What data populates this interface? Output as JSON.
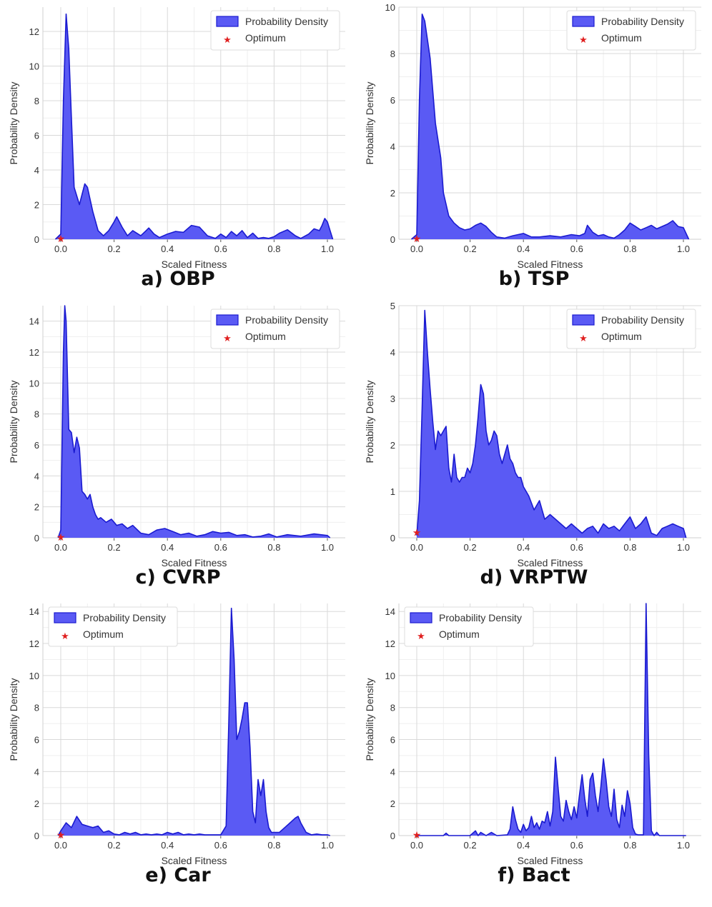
{
  "legend": {
    "density_label": "Probability Density",
    "optimum_label": "Optimum"
  },
  "colors": {
    "fill": "#5a5af4",
    "stroke": "#1a1ad0",
    "grid": "#d9d9d9",
    "star": "#e02020"
  },
  "chart_data": [
    {
      "id": "a",
      "caption": "a) OBP",
      "type": "area",
      "xlabel": "Scaled Fitness",
      "ylabel": "Probability Density",
      "xlim": [
        0,
        1
      ],
      "ylim": [
        0,
        13.4
      ],
      "xticks": [
        "0.0",
        "0.2",
        "0.4",
        "0.6",
        "0.8",
        "1.0"
      ],
      "yticks": [
        "0",
        "2",
        "4",
        "6",
        "8",
        "10",
        "12"
      ],
      "legend_position": "top-right",
      "grid": true,
      "optimum": [
        0,
        0
      ],
      "x": [
        -0.02,
        0,
        0.01,
        0.02,
        0.03,
        0.04,
        0.05,
        0.07,
        0.09,
        0.1,
        0.12,
        0.14,
        0.16,
        0.18,
        0.2,
        0.21,
        0.23,
        0.25,
        0.27,
        0.3,
        0.32,
        0.33,
        0.35,
        0.37,
        0.4,
        0.43,
        0.46,
        0.49,
        0.52,
        0.55,
        0.58,
        0.6,
        0.62,
        0.64,
        0.66,
        0.68,
        0.7,
        0.72,
        0.74,
        0.76,
        0.78,
        0.8,
        0.82,
        0.85,
        0.88,
        0.9,
        0.93,
        0.95,
        0.97,
        0.98,
        0.99,
        1.0,
        1.02
      ],
      "y": [
        0,
        0.3,
        8,
        13,
        11,
        7,
        3,
        2,
        3.2,
        3,
        1.6,
        0.5,
        0.2,
        0.5,
        1,
        1.3,
        0.7,
        0.2,
        0.5,
        0.2,
        0.5,
        0.65,
        0.3,
        0.1,
        0.3,
        0.45,
        0.4,
        0.8,
        0.7,
        0.2,
        0.05,
        0.3,
        0.1,
        0.45,
        0.2,
        0.5,
        0.1,
        0.35,
        0.05,
        0.1,
        0.05,
        0.15,
        0.35,
        0.55,
        0.2,
        0.05,
        0.3,
        0.6,
        0.5,
        0.8,
        1.2,
        1.0,
        0
      ]
    },
    {
      "id": "b",
      "caption": "b) TSP",
      "type": "area",
      "xlabel": "Scaled Fitness",
      "ylabel": "Probability Density",
      "xlim": [
        0,
        1
      ],
      "ylim": [
        0,
        10
      ],
      "xticks": [
        "0.0",
        "0.2",
        "0.4",
        "0.6",
        "0.8",
        "1.0"
      ],
      "yticks": [
        "0",
        "2",
        "4",
        "6",
        "8",
        "10"
      ],
      "legend_position": "top-right",
      "grid": true,
      "optimum": [
        0,
        0
      ],
      "x": [
        -0.02,
        0,
        0.01,
        0.02,
        0.03,
        0.05,
        0.07,
        0.09,
        0.1,
        0.12,
        0.14,
        0.16,
        0.18,
        0.2,
        0.22,
        0.24,
        0.26,
        0.28,
        0.3,
        0.33,
        0.36,
        0.4,
        0.43,
        0.46,
        0.5,
        0.54,
        0.58,
        0.61,
        0.63,
        0.64,
        0.66,
        0.68,
        0.7,
        0.72,
        0.74,
        0.76,
        0.78,
        0.8,
        0.82,
        0.84,
        0.86,
        0.88,
        0.9,
        0.92,
        0.94,
        0.96,
        0.98,
        1.0,
        1.02
      ],
      "y": [
        0,
        0.2,
        6,
        9.7,
        9.4,
        7.8,
        5,
        3.5,
        2,
        1,
        0.7,
        0.5,
        0.4,
        0.45,
        0.6,
        0.7,
        0.55,
        0.3,
        0.1,
        0.05,
        0.15,
        0.25,
        0.1,
        0.1,
        0.15,
        0.1,
        0.2,
        0.15,
        0.25,
        0.6,
        0.3,
        0.15,
        0.2,
        0.1,
        0.05,
        0.2,
        0.4,
        0.7,
        0.55,
        0.4,
        0.5,
        0.6,
        0.45,
        0.55,
        0.65,
        0.8,
        0.55,
        0.5,
        0
      ]
    },
    {
      "id": "c",
      "caption": "c) CVRP",
      "type": "area",
      "xlabel": "Scaled Fitness",
      "ylabel": "Probability Density",
      "xlim": [
        0,
        1
      ],
      "ylim": [
        0,
        15
      ],
      "xticks": [
        "0.0",
        "0.2",
        "0.4",
        "0.6",
        "0.8",
        "1.0"
      ],
      "yticks": [
        "0",
        "2",
        "4",
        "6",
        "8",
        "10",
        "12",
        "14"
      ],
      "legend_position": "top-right",
      "grid": true,
      "optimum": [
        0,
        0
      ],
      "x": [
        -0.01,
        0,
        0.01,
        0.015,
        0.02,
        0.03,
        0.04,
        0.05,
        0.06,
        0.07,
        0.08,
        0.09,
        0.1,
        0.11,
        0.12,
        0.13,
        0.14,
        0.15,
        0.17,
        0.19,
        0.21,
        0.23,
        0.25,
        0.27,
        0.3,
        0.33,
        0.36,
        0.39,
        0.42,
        0.45,
        0.48,
        0.51,
        0.54,
        0.57,
        0.6,
        0.63,
        0.66,
        0.69,
        0.72,
        0.75,
        0.78,
        0.81,
        0.85,
        0.9,
        0.95,
        1.0,
        1.01
      ],
      "y": [
        0,
        0.5,
        12,
        15.2,
        14,
        7,
        6.8,
        5.5,
        6.5,
        5.8,
        3,
        2.8,
        2.5,
        2.8,
        2,
        1.5,
        1.2,
        1.3,
        1,
        1.2,
        0.8,
        0.9,
        0.6,
        0.8,
        0.3,
        0.2,
        0.5,
        0.6,
        0.4,
        0.2,
        0.3,
        0.1,
        0.2,
        0.4,
        0.3,
        0.35,
        0.15,
        0.2,
        0.05,
        0.1,
        0.25,
        0.05,
        0.2,
        0.1,
        0.25,
        0.15,
        0
      ]
    },
    {
      "id": "d",
      "caption": "d) VRPTW",
      "type": "area",
      "xlabel": "Scaled Fitness",
      "ylabel": "Probability Density",
      "xlim": [
        0,
        1
      ],
      "ylim": [
        0,
        5
      ],
      "xticks": [
        "0.0",
        "0.2",
        "0.4",
        "0.6",
        "0.8",
        "1.0"
      ],
      "yticks": [
        "0",
        "1",
        "2",
        "3",
        "4",
        "5"
      ],
      "legend_position": "top-right",
      "grid": true,
      "optimum": [
        0,
        0.1
      ],
      "x": [
        0.0,
        0.01,
        0.02,
        0.03,
        0.04,
        0.05,
        0.06,
        0.07,
        0.08,
        0.09,
        0.1,
        0.11,
        0.12,
        0.13,
        0.14,
        0.15,
        0.16,
        0.17,
        0.18,
        0.19,
        0.2,
        0.21,
        0.22,
        0.23,
        0.24,
        0.25,
        0.26,
        0.27,
        0.28,
        0.29,
        0.3,
        0.31,
        0.32,
        0.33,
        0.34,
        0.35,
        0.36,
        0.37,
        0.38,
        0.39,
        0.4,
        0.42,
        0.44,
        0.46,
        0.48,
        0.5,
        0.52,
        0.54,
        0.56,
        0.58,
        0.6,
        0.62,
        0.64,
        0.66,
        0.68,
        0.7,
        0.72,
        0.74,
        0.76,
        0.78,
        0.8,
        0.82,
        0.84,
        0.86,
        0.88,
        0.9,
        0.92,
        0.94,
        0.96,
        0.98,
        1.0,
        1.01
      ],
      "y": [
        0.05,
        0.8,
        2.8,
        4.9,
        4.0,
        3.2,
        2.5,
        1.9,
        2.3,
        2.2,
        2.3,
        2.4,
        1.5,
        1.2,
        1.8,
        1.3,
        1.2,
        1.3,
        1.3,
        1.5,
        1.4,
        1.6,
        2.0,
        2.6,
        3.3,
        3.1,
        2.3,
        2.0,
        2.1,
        2.3,
        2.2,
        1.8,
        1.6,
        1.8,
        2.0,
        1.7,
        1.6,
        1.4,
        1.3,
        1.3,
        1.1,
        0.9,
        0.6,
        0.8,
        0.4,
        0.5,
        0.4,
        0.3,
        0.2,
        0.3,
        0.2,
        0.1,
        0.2,
        0.25,
        0.1,
        0.3,
        0.2,
        0.25,
        0.15,
        0.3,
        0.45,
        0.2,
        0.3,
        0.45,
        0.1,
        0.05,
        0.2,
        0.25,
        0.3,
        0.25,
        0.2,
        0
      ]
    },
    {
      "id": "e",
      "caption": "e) Car",
      "type": "area",
      "xlabel": "Scaled Fitness",
      "ylabel": "Probability Density",
      "xlim": [
        0,
        1
      ],
      "ylim": [
        0,
        14.5
      ],
      "xticks": [
        "0.0",
        "0.2",
        "0.4",
        "0.6",
        "0.8",
        "1.0"
      ],
      "yticks": [
        "0",
        "2",
        "4",
        "6",
        "8",
        "10",
        "12",
        "14"
      ],
      "legend_position": "top-left",
      "grid": true,
      "optimum": [
        0,
        0
      ],
      "x": [
        -0.01,
        0,
        0.02,
        0.04,
        0.06,
        0.08,
        0.1,
        0.12,
        0.14,
        0.16,
        0.18,
        0.2,
        0.22,
        0.24,
        0.26,
        0.28,
        0.3,
        0.32,
        0.34,
        0.36,
        0.38,
        0.4,
        0.42,
        0.44,
        0.46,
        0.48,
        0.5,
        0.52,
        0.54,
        0.56,
        0.58,
        0.6,
        0.62,
        0.63,
        0.64,
        0.65,
        0.66,
        0.67,
        0.68,
        0.69,
        0.7,
        0.71,
        0.72,
        0.73,
        0.74,
        0.75,
        0.76,
        0.77,
        0.78,
        0.79,
        0.8,
        0.82,
        0.84,
        0.86,
        0.88,
        0.89,
        0.9,
        0.92,
        0.94,
        0.96,
        0.98,
        1.0,
        1.01
      ],
      "y": [
        0,
        0.3,
        0.8,
        0.5,
        1.2,
        0.7,
        0.6,
        0.5,
        0.6,
        0.2,
        0.3,
        0.1,
        0.05,
        0.2,
        0.1,
        0.2,
        0.05,
        0.1,
        0.05,
        0.1,
        0.05,
        0.2,
        0.1,
        0.2,
        0.05,
        0.1,
        0.05,
        0.1,
        0.05,
        0.05,
        0.05,
        0.05,
        0.6,
        7,
        14.2,
        11,
        6,
        6.5,
        7.3,
        8.3,
        8.3,
        5.5,
        1.5,
        0.8,
        3.5,
        2.5,
        3.5,
        1.5,
        0.5,
        0.2,
        0.2,
        0.2,
        0.5,
        0.8,
        1.1,
        1.2,
        0.8,
        0.2,
        0.05,
        0.1,
        0.05,
        0.05,
        0
      ]
    },
    {
      "id": "f",
      "caption": "f) Bact",
      "type": "area",
      "xlabel": "Scaled Fitness",
      "ylabel": "Probability Density",
      "xlim": [
        0,
        1
      ],
      "ylim": [
        0,
        14.5
      ],
      "xticks": [
        "0.0",
        "0.2",
        "0.4",
        "0.6",
        "0.8",
        "1.0"
      ],
      "yticks": [
        "0",
        "2",
        "4",
        "6",
        "8",
        "10",
        "12",
        "14"
      ],
      "legend_position": "top-left",
      "grid": true,
      "optimum": [
        0,
        0
      ],
      "x": [
        0.0,
        0.1,
        0.11,
        0.12,
        0.2,
        0.22,
        0.23,
        0.24,
        0.26,
        0.28,
        0.3,
        0.34,
        0.35,
        0.36,
        0.37,
        0.38,
        0.39,
        0.4,
        0.41,
        0.42,
        0.43,
        0.44,
        0.45,
        0.46,
        0.47,
        0.48,
        0.49,
        0.5,
        0.51,
        0.52,
        0.53,
        0.54,
        0.55,
        0.56,
        0.57,
        0.58,
        0.59,
        0.6,
        0.61,
        0.62,
        0.63,
        0.64,
        0.65,
        0.66,
        0.67,
        0.68,
        0.69,
        0.7,
        0.71,
        0.72,
        0.73,
        0.74,
        0.75,
        0.76,
        0.77,
        0.78,
        0.79,
        0.8,
        0.81,
        0.82,
        0.83,
        0.84,
        0.85,
        0.86,
        0.87,
        0.88,
        0.89,
        0.9,
        0.91,
        0.92,
        0.93,
        0.94,
        0.95,
        0.96,
        0.97,
        0.98,
        1.0,
        1.01
      ],
      "y": [
        0,
        0,
        0.15,
        0,
        0,
        0.3,
        0,
        0.2,
        0,
        0.2,
        0,
        0.05,
        0.4,
        1.8,
        1.0,
        0.4,
        0.2,
        0.7,
        0.3,
        0.5,
        1.2,
        0.5,
        0.8,
        0.4,
        0.9,
        0.8,
        1.5,
        0.6,
        1.5,
        4.9,
        3.0,
        1.2,
        0.9,
        2.2,
        1.5,
        1.0,
        1.8,
        1.1,
        2.5,
        3.8,
        2.3,
        1.2,
        3.5,
        3.9,
        2.5,
        1.5,
        3.0,
        4.8,
        3.5,
        1.8,
        1.2,
        2.9,
        1.0,
        0.5,
        1.9,
        1.2,
        2.8,
        2.0,
        0.5,
        0.1,
        0.05,
        0.05,
        0.05,
        14.5,
        5.0,
        0.3,
        0,
        0.2,
        0,
        0,
        0,
        0,
        0,
        0,
        0,
        0,
        0,
        0
      ]
    }
  ]
}
